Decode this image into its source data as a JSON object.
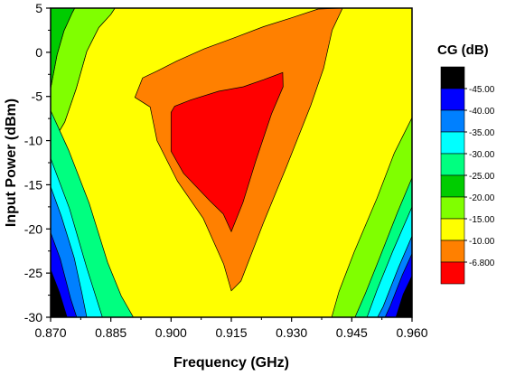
{
  "chart_data": {
    "type": "contour",
    "xlabel": "Frequency (GHz)",
    "ylabel": "Input Power (dBm)",
    "xlim": [
      0.87,
      0.96
    ],
    "ylim": [
      -30,
      5
    ],
    "x_ticks": [
      "0.870",
      "0.885",
      "0.900",
      "0.915",
      "0.930",
      "0.945",
      "0.960"
    ],
    "y_ticks": [
      "5",
      "0",
      "-5",
      "-10",
      "-15",
      "-20",
      "-25",
      "-30"
    ],
    "legend_title": "CG (dB)",
    "legend_levels": [
      {
        "label": "-45.00",
        "color": "#000000"
      },
      {
        "label": "-40.00",
        "color": "#0000ff"
      },
      {
        "label": "-35.00",
        "color": "#0080ff"
      },
      {
        "label": "-30.00",
        "color": "#00ffff"
      },
      {
        "label": "-25.00",
        "color": "#00ff80"
      },
      {
        "label": "-20.00",
        "color": "#00cc00"
      },
      {
        "label": "-15.00",
        "color": "#80ff00"
      },
      {
        "label": "-10.00",
        "color": "#ffff00"
      },
      {
        "label": "-6.800",
        "color": "#ff8000"
      },
      {
        "label": "",
        "color": "#ff0000"
      }
    ],
    "contours": [
      {
        "color": "#ffff00",
        "polygon": [
          [
            0.9,
            -30
          ],
          [
            0.87,
            -30
          ],
          [
            0.87,
            -10.6
          ],
          [
            0.8735,
            -7.9
          ],
          [
            0.8764,
            -4.1
          ],
          [
            0.879,
            0.1
          ],
          [
            0.882,
            2.8
          ],
          [
            0.885,
            4.3
          ],
          [
            0.886,
            5.0
          ],
          [
            0.96,
            5.0
          ],
          [
            0.96,
            -30
          ]
        ]
      },
      {
        "color": "#80ff00",
        "polygon": [
          [
            0.87,
            -4.1
          ],
          [
            0.8716,
            -0.3
          ],
          [
            0.8733,
            2.4
          ],
          [
            0.8754,
            4.5
          ],
          [
            0.876,
            5.0
          ],
          [
            0.886,
            5.0
          ],
          [
            0.885,
            4.3
          ],
          [
            0.882,
            2.8
          ],
          [
            0.879,
            0.1
          ],
          [
            0.8764,
            -4.1
          ],
          [
            0.8735,
            -7.9
          ],
          [
            0.87,
            -10.6
          ]
        ]
      },
      {
        "color": "#00cc00",
        "polygon": [
          [
            0.87,
            -30
          ],
          [
            0.87,
            5.0
          ],
          [
            0.876,
            5.0
          ],
          [
            0.8754,
            4.5
          ],
          [
            0.8733,
            2.4
          ],
          [
            0.8716,
            -0.3
          ],
          [
            0.87,
            -4.1
          ]
        ]
      },
      {
        "color": "#00ff80",
        "polygon": [
          [
            0.87,
            -30
          ],
          [
            0.87,
            -6.6
          ],
          [
            0.8745,
            -11.1
          ],
          [
            0.8796,
            -17.1
          ],
          [
            0.8842,
            -23.8
          ],
          [
            0.8876,
            -27.6
          ],
          [
            0.8906,
            -30
          ]
        ]
      },
      {
        "color": "#00ffff",
        "polygon": [
          [
            0.87,
            -30
          ],
          [
            0.87,
            -12.0
          ],
          [
            0.8747,
            -17.7
          ],
          [
            0.879,
            -24.4
          ],
          [
            0.8829,
            -30
          ]
        ]
      },
      {
        "color": "#0080ff",
        "polygon": [
          [
            0.87,
            -30
          ],
          [
            0.87,
            -15.2
          ],
          [
            0.8727,
            -18.6
          ],
          [
            0.8759,
            -23.3
          ],
          [
            0.8778,
            -27.3
          ],
          [
            0.879,
            -30
          ]
        ]
      },
      {
        "color": "#0000ff",
        "polygon": [
          [
            0.87,
            -30
          ],
          [
            0.87,
            -20.4
          ],
          [
            0.8724,
            -23.4
          ],
          [
            0.875,
            -27.9
          ],
          [
            0.8765,
            -30
          ]
        ]
      },
      {
        "color": "#000000",
        "polygon": [
          [
            0.87,
            -30
          ],
          [
            0.87,
            -24.6
          ],
          [
            0.8722,
            -27.2
          ],
          [
            0.8741,
            -30
          ]
        ]
      },
      {
        "color": "#80ff00",
        "polygon": [
          [
            0.96,
            -30
          ],
          [
            0.96,
            -7.4
          ],
          [
            0.9556,
            -11.4
          ],
          [
            0.9513,
            -16.5
          ],
          [
            0.9456,
            -22.6
          ],
          [
            0.9418,
            -27.1
          ],
          [
            0.94,
            -30
          ]
        ]
      },
      {
        "color": "#00ff80",
        "polygon": [
          [
            0.96,
            -30
          ],
          [
            0.96,
            -14.2
          ],
          [
            0.9563,
            -18.2
          ],
          [
            0.952,
            -23.2
          ],
          [
            0.9484,
            -27.3
          ],
          [
            0.9458,
            -30
          ]
        ]
      },
      {
        "color": "#00ffff",
        "polygon": [
          [
            0.96,
            -30
          ],
          [
            0.96,
            -17.5
          ],
          [
            0.9554,
            -22.3
          ],
          [
            0.9513,
            -26.9
          ],
          [
            0.9488,
            -30
          ]
        ]
      },
      {
        "color": "#0080ff",
        "polygon": [
          [
            0.96,
            -30
          ],
          [
            0.96,
            -20.8
          ],
          [
            0.9566,
            -24.4
          ],
          [
            0.9528,
            -28.8
          ],
          [
            0.9514,
            -30
          ]
        ]
      },
      {
        "color": "#0000ff",
        "polygon": [
          [
            0.96,
            -30
          ],
          [
            0.96,
            -22.8
          ],
          [
            0.9576,
            -25.2
          ],
          [
            0.9546,
            -28.7
          ],
          [
            0.9533,
            -30
          ]
        ]
      },
      {
        "color": "#000000",
        "polygon": [
          [
            0.96,
            -30
          ],
          [
            0.96,
            -25.3
          ],
          [
            0.9578,
            -27.4
          ],
          [
            0.956,
            -30
          ]
        ]
      },
      {
        "color": "#ff8000",
        "polygon": [
          [
            0.891,
            -5.1
          ],
          [
            0.8929,
            -2.9
          ],
          [
            0.8966,
            -2.1
          ],
          [
            0.9014,
            -1.0
          ],
          [
            0.9083,
            0.4
          ],
          [
            0.9161,
            1.7
          ],
          [
            0.923,
            2.9
          ],
          [
            0.93,
            3.9
          ],
          [
            0.9366,
            4.9
          ],
          [
            0.9427,
            5.0
          ],
          [
            0.9401,
            2.5
          ],
          [
            0.938,
            -1.8
          ],
          [
            0.9348,
            -6.0
          ],
          [
            0.9288,
            -12.9
          ],
          [
            0.923,
            -19.3
          ],
          [
            0.9174,
            -25.9
          ],
          [
            0.915,
            -27.0
          ],
          [
            0.9131,
            -24.0
          ],
          [
            0.908,
            -18.8
          ],
          [
            0.9016,
            -14.6
          ],
          [
            0.8965,
            -10.0
          ],
          [
            0.8948,
            -6.2
          ]
        ]
      },
      {
        "color": "#ff0000",
        "polygon": [
          [
            0.9,
            -6.8
          ],
          [
            0.9009,
            -6.1
          ],
          [
            0.9049,
            -5.4
          ],
          [
            0.9119,
            -4.4
          ],
          [
            0.918,
            -3.9
          ],
          [
            0.9231,
            -3.1
          ],
          [
            0.9278,
            -2.3
          ],
          [
            0.9279,
            -3.9
          ],
          [
            0.925,
            -7.0
          ],
          [
            0.9211,
            -12.3
          ],
          [
            0.9179,
            -17.0
          ],
          [
            0.915,
            -20.3
          ],
          [
            0.913,
            -18.3
          ],
          [
            0.9096,
            -16.8
          ],
          [
            0.9031,
            -13.7
          ],
          [
            0.9,
            -11.2
          ]
        ]
      }
    ]
  }
}
